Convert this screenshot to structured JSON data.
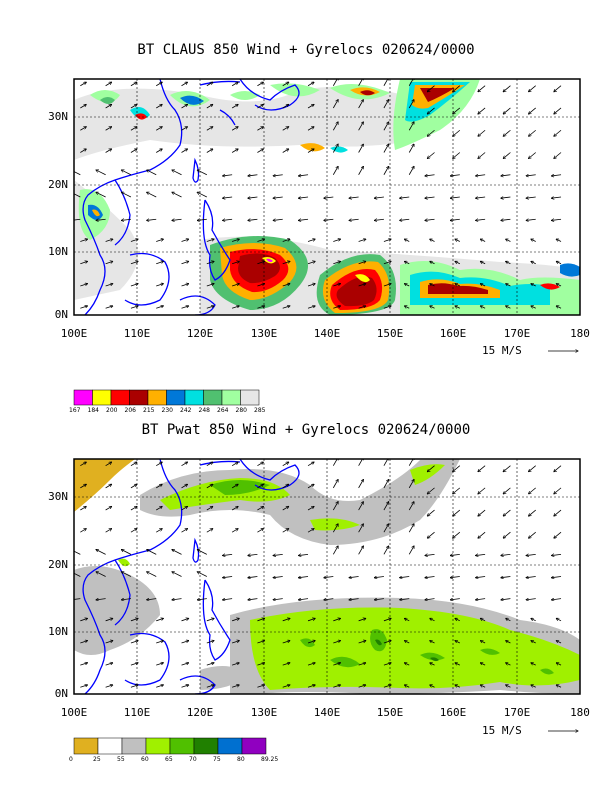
{
  "panels": [
    {
      "title": "BT CLAUS 850 Wind + Gyrelocs 020624/0000",
      "y_labels": [
        "30N",
        "20N",
        "10N",
        "0N"
      ],
      "x_labels": [
        "100E",
        "110E",
        "120E",
        "130E",
        "140E",
        "150E",
        "160E",
        "170E",
        "180"
      ],
      "wind_scale": "15 M/S",
      "colorbar": {
        "colors": [
          "#ff00ff",
          "#ffff00",
          "#ff0000",
          "#aa0000",
          "#ffb000",
          "#0078d8",
          "#00e0e0",
          "#50c070",
          "#a0ffa0",
          "#e6e6e6"
        ],
        "labels": [
          "167",
          "184",
          "200",
          "206",
          "215",
          "230",
          "242",
          "248",
          "264",
          "280",
          "285"
        ]
      }
    },
    {
      "title": "BT Pwat 850 Wind + Gyrelocs 020624/0000",
      "y_labels": [
        "30N",
        "20N",
        "10N",
        "0N"
      ],
      "x_labels": [
        "100E",
        "110E",
        "120E",
        "130E",
        "140E",
        "150E",
        "160E",
        "170E",
        "180"
      ],
      "wind_scale": "15 M/S",
      "colorbar": {
        "colors": [
          "#e0b020",
          "#ffffff",
          "#c0c0c0",
          "#a0f000",
          "#50c000",
          "#208000",
          "#0070d0",
          "#9000c0"
        ],
        "labels": [
          "0",
          "25",
          "55",
          "60",
          "65",
          "70",
          "75",
          "80",
          "89.25"
        ]
      }
    }
  ],
  "colors": {
    "coastline": "#0000ff",
    "frame": "#000000",
    "grid": "#000000"
  }
}
